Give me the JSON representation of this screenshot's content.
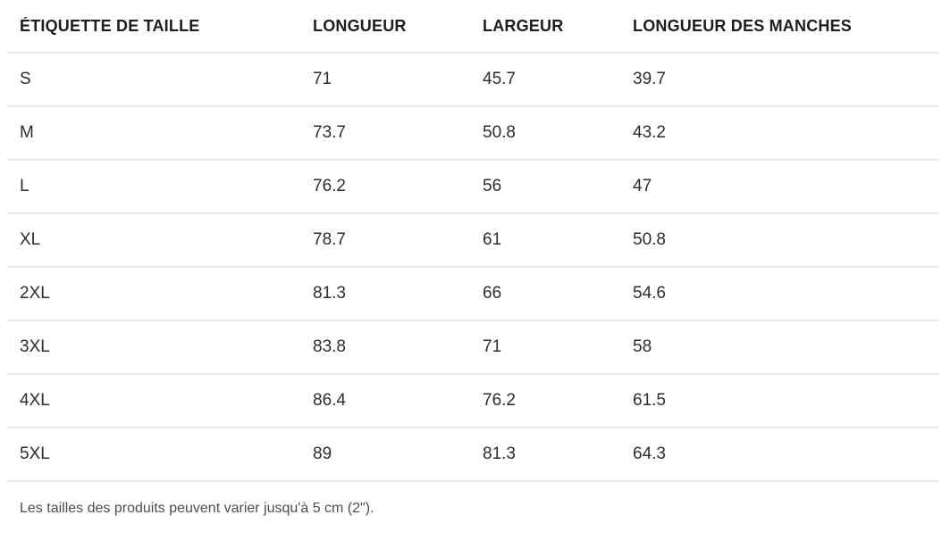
{
  "size_chart": {
    "columns": [
      {
        "label": "ÉTIQUETTE DE TAILLE"
      },
      {
        "label": "LONGUEUR"
      },
      {
        "label": "LARGEUR"
      },
      {
        "label": "LONGUEUR DES MANCHES"
      }
    ],
    "rows": [
      {
        "label": "S",
        "longueur": "71",
        "largeur": "45.7",
        "manches": "39.7"
      },
      {
        "label": "M",
        "longueur": "73.7",
        "largeur": "50.8",
        "manches": "43.2"
      },
      {
        "label": "L",
        "longueur": "76.2",
        "largeur": "56",
        "manches": "47"
      },
      {
        "label": "XL",
        "longueur": "78.7",
        "largeur": "61",
        "manches": "50.8"
      },
      {
        "label": "2XL",
        "longueur": "81.3",
        "largeur": "66",
        "manches": "54.6"
      },
      {
        "label": "3XL",
        "longueur": "83.8",
        "largeur": "71",
        "manches": "58"
      },
      {
        "label": "4XL",
        "longueur": "86.4",
        "largeur": "76.2",
        "manches": "61.5"
      },
      {
        "label": "5XL",
        "longueur": "89",
        "largeur": "81.3",
        "manches": "64.3"
      }
    ],
    "note": "Les tailles des produits peuvent varier jusqu'à 5 cm (2\")."
  },
  "colors": {
    "background": "#ffffff",
    "header_text": "#1d1d1d",
    "body_text": "#2d2d2d",
    "divider": "#e9e9e9",
    "note_text": "#4d4d4d"
  }
}
